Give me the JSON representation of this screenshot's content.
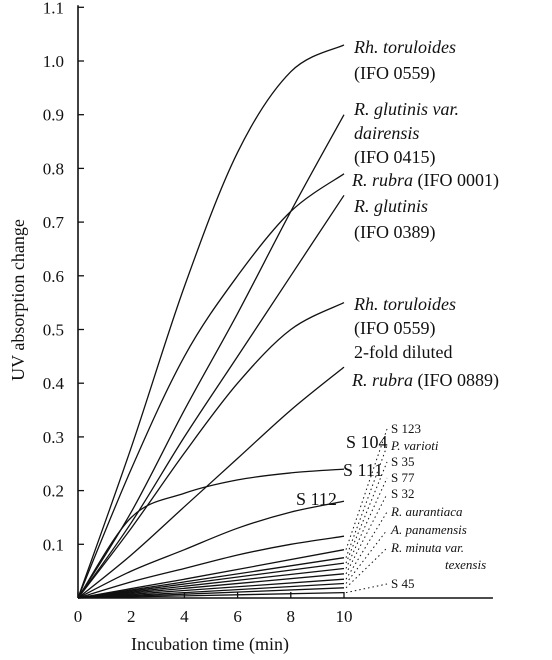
{
  "chart_data": {
    "type": "line",
    "title": "",
    "xlabel": "Incubation time (min)",
    "ylabel": "UV absorption change",
    "xlim": [
      0,
      15.6
    ],
    "ylim": [
      0,
      1.1
    ],
    "xticks": [
      0,
      2,
      4,
      6,
      8,
      10
    ],
    "xtick_labels": [
      "0",
      "2",
      "4",
      "6",
      "8",
      "10"
    ],
    "yticks": [
      0.1,
      0.2,
      0.3,
      0.4,
      0.5,
      0.6,
      0.7,
      0.8,
      0.9,
      1.0,
      1.1
    ],
    "ytick_labels": [
      "0.1",
      "0.2",
      "0.3",
      "0.4",
      "0.5",
      "0.6",
      "0.7",
      "0.8",
      "0.9",
      "1.0",
      "1.1"
    ],
    "grid": false,
    "legend": "none",
    "series": [
      {
        "name": "Rh. toruloides (IFO 0559)",
        "label_lines": [
          "Rh. toruloides",
          "(IFO 0559)"
        ],
        "points": [
          [
            0,
            0
          ],
          [
            2,
            0.28
          ],
          [
            4,
            0.58
          ],
          [
            6,
            0.83
          ],
          [
            8,
            0.98
          ],
          [
            10,
            1.03
          ]
        ]
      },
      {
        "name": "R. glutinis var. dairensis (IFO 0415)",
        "label_lines": [
          "R. glutinis var.",
          "dairensis",
          "(IFO 0415)"
        ],
        "points": [
          [
            0,
            0
          ],
          [
            2,
            0.16
          ],
          [
            4,
            0.35
          ],
          [
            6,
            0.53
          ],
          [
            8,
            0.72
          ],
          [
            10,
            0.9
          ]
        ]
      },
      {
        "name": "R. rubra (IFO 0001)",
        "label_lines": [
          "R. rubra (IFO 0001)"
        ],
        "points": [
          [
            0,
            0
          ],
          [
            2,
            0.24
          ],
          [
            4,
            0.45
          ],
          [
            6,
            0.6
          ],
          [
            8,
            0.72
          ],
          [
            10,
            0.79
          ]
        ]
      },
      {
        "name": "R. glutinis (IFO 0389)",
        "label_lines": [
          "R. glutinis",
          "(IFO 0389)"
        ],
        "points": [
          [
            0,
            0
          ],
          [
            2,
            0.14
          ],
          [
            4,
            0.3
          ],
          [
            6,
            0.45
          ],
          [
            8,
            0.6
          ],
          [
            10,
            0.75
          ]
        ]
      },
      {
        "name": "Rh. toruloides (IFO 0559), 2-fold diluted",
        "label_lines": [
          "Rh. toruloides",
          "(IFO 0559)",
          "2-fold diluted"
        ],
        "points": [
          [
            0,
            0
          ],
          [
            2,
            0.13
          ],
          [
            4,
            0.27
          ],
          [
            6,
            0.4
          ],
          [
            8,
            0.5
          ],
          [
            10,
            0.55
          ]
        ]
      },
      {
        "name": "R. rubra (IFO 0889)",
        "label_lines": [
          "R. rubra (IFO 0889)"
        ],
        "points": [
          [
            0,
            0
          ],
          [
            2,
            0.08
          ],
          [
            4,
            0.17
          ],
          [
            6,
            0.26
          ],
          [
            8,
            0.35
          ],
          [
            10,
            0.43
          ]
        ]
      },
      {
        "name": "S 104",
        "label_lines": [
          "S 104"
        ],
        "points": [
          [
            0,
            0
          ],
          [
            2,
            0.15
          ],
          [
            4,
            0.195
          ],
          [
            6,
            0.22
          ],
          [
            8,
            0.233
          ],
          [
            10,
            0.24
          ]
        ]
      },
      {
        "name": "S 111",
        "label_lines": [
          "S 111"
        ],
        "points": [
          [
            0,
            0
          ],
          [
            2,
            0.05
          ],
          [
            4,
            0.09
          ],
          [
            6,
            0.13
          ],
          [
            8,
            0.16
          ],
          [
            10,
            0.18
          ]
        ]
      },
      {
        "name": "S 112",
        "label_lines": [
          "S 112"
        ],
        "points": [
          [
            0,
            0
          ],
          [
            2,
            0.03
          ],
          [
            4,
            0.055
          ],
          [
            6,
            0.08
          ],
          [
            8,
            0.1
          ],
          [
            10,
            0.115
          ]
        ]
      },
      {
        "name": "S 123",
        "label_lines": [
          "S 123"
        ],
        "points": [
          [
            0,
            0
          ],
          [
            4,
            0.035
          ],
          [
            10,
            0.09
          ]
        ]
      },
      {
        "name": "P. varioti",
        "label_lines": [
          "P. varioti"
        ],
        "points": [
          [
            0,
            0
          ],
          [
            4,
            0.03
          ],
          [
            10,
            0.075
          ]
        ]
      },
      {
        "name": "S 35",
        "label_lines": [
          "S 35"
        ],
        "points": [
          [
            0,
            0
          ],
          [
            4,
            0.026
          ],
          [
            10,
            0.065
          ]
        ]
      },
      {
        "name": "S 77",
        "label_lines": [
          "S 77"
        ],
        "points": [
          [
            0,
            0
          ],
          [
            4,
            0.022
          ],
          [
            10,
            0.055
          ]
        ]
      },
      {
        "name": "S 32",
        "label_lines": [
          "S 32"
        ],
        "points": [
          [
            0,
            0
          ],
          [
            4,
            0.018
          ],
          [
            10,
            0.045
          ]
        ]
      },
      {
        "name": "R. aurantiaca",
        "label_lines": [
          "R. aurantiaca"
        ],
        "points": [
          [
            0,
            0
          ],
          [
            4,
            0.014
          ],
          [
            10,
            0.035
          ]
        ]
      },
      {
        "name": "A. panamensis",
        "label_lines": [
          "A. panamensis"
        ],
        "points": [
          [
            0,
            0
          ],
          [
            4,
            0.01
          ],
          [
            10,
            0.027
          ]
        ]
      },
      {
        "name": "R. minuta var. texensis",
        "label_lines": [
          "R. minuta var.",
          "texensis"
        ],
        "points": [
          [
            0,
            0
          ],
          [
            4,
            0.007
          ],
          [
            10,
            0.019
          ]
        ]
      },
      {
        "name": "S 45",
        "label_lines": [
          "S 45"
        ],
        "points": [
          [
            0,
            0
          ],
          [
            4,
            0.004
          ],
          [
            10,
            0.01
          ]
        ]
      }
    ]
  }
}
